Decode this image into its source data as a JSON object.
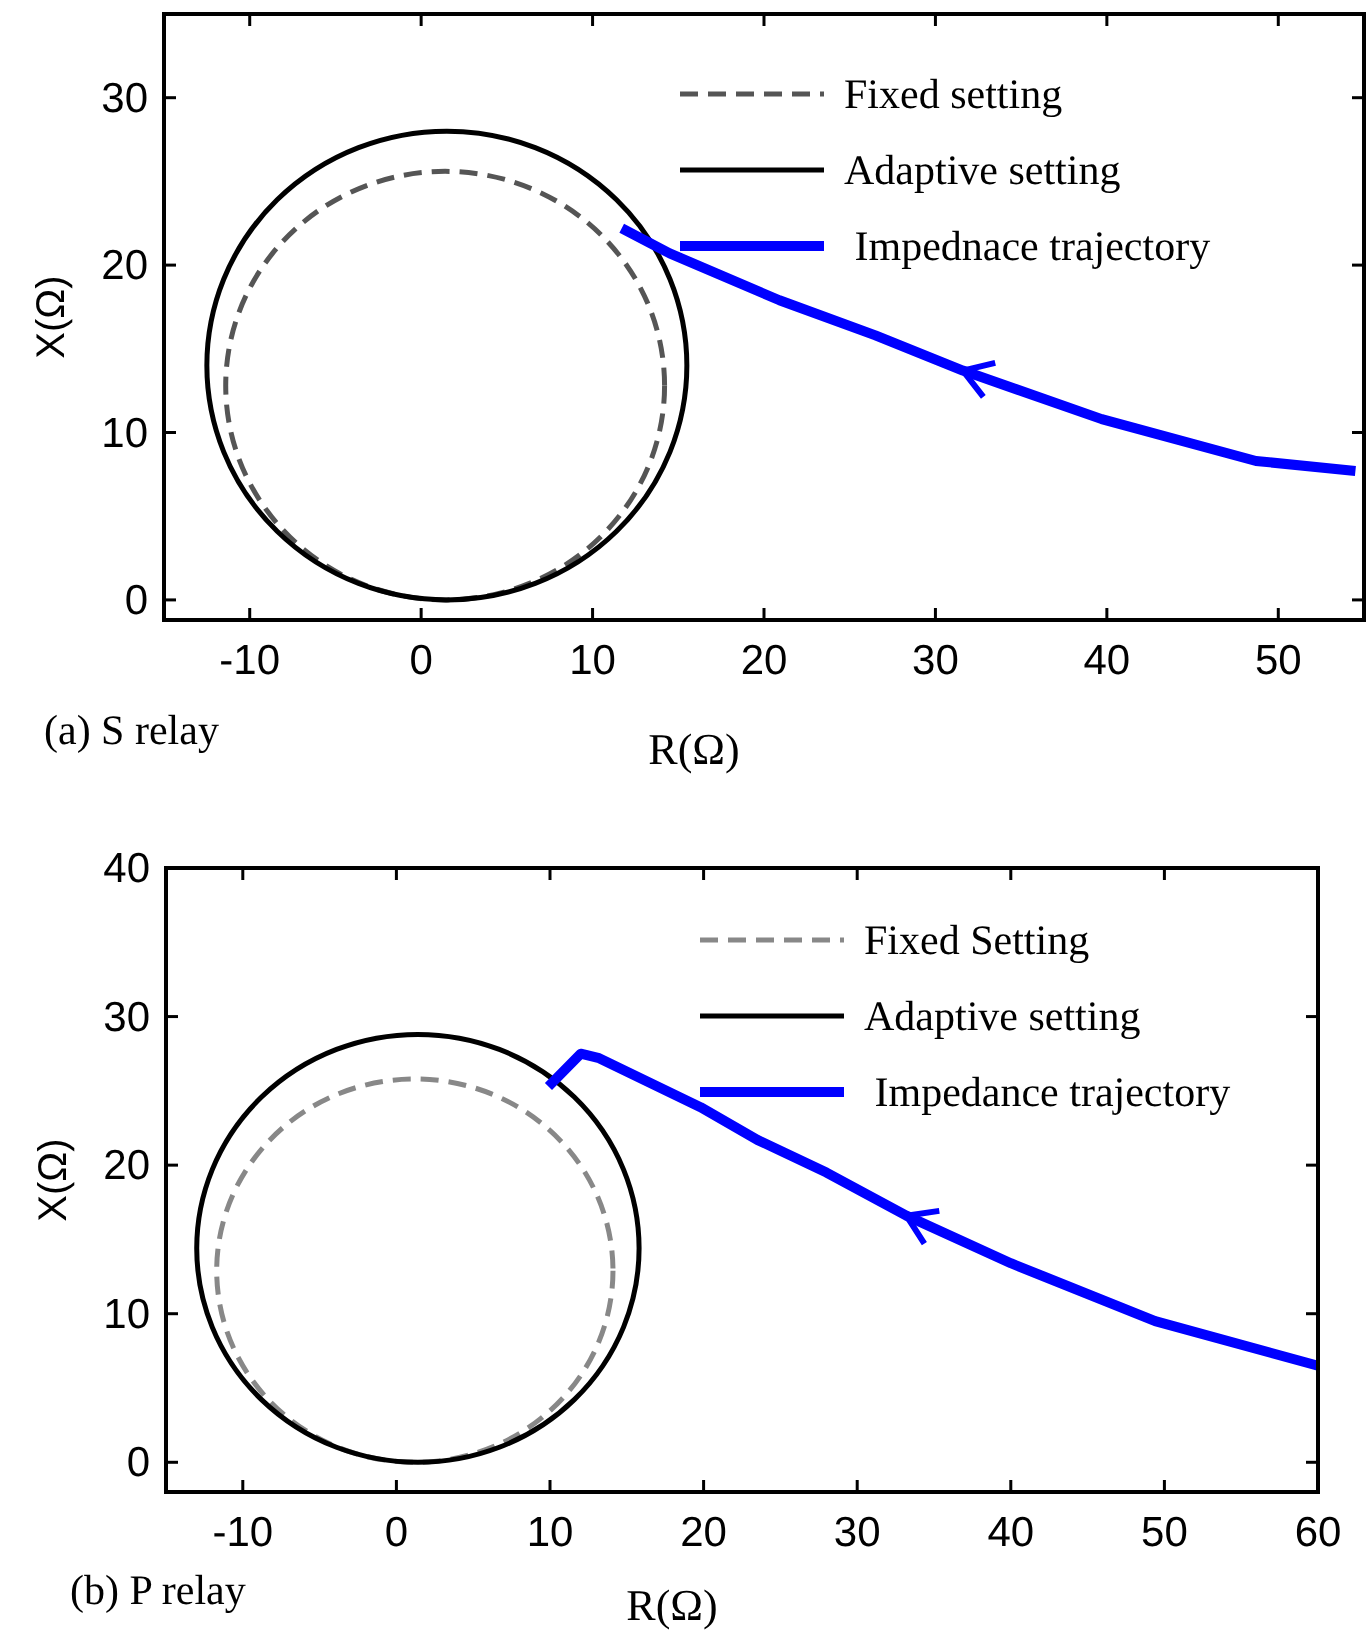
{
  "chart_data": [
    {
      "type": "line",
      "xlabel": "R(Ω)",
      "ylabel": "X(Ω)",
      "xlim": [
        -15,
        55
      ],
      "ylim": [
        -1.2,
        35
      ],
      "xticks": [
        -10,
        0,
        10,
        20,
        30,
        40,
        50
      ],
      "yticks": [
        0,
        10,
        20,
        30
      ],
      "legend": "top right",
      "grid": false,
      "annotations": [
        "(a) S relay"
      ],
      "series": [
        {
          "name": "Fixed setting",
          "color": "#555555",
          "line_style": "dashed"
        },
        {
          "name": "Adaptive setting",
          "color": "#000000",
          "line_style": "solid"
        },
        {
          "name": " Impednace trajectory",
          "color": "#0000ff",
          "line_style": "solid",
          "x": [
            11.7,
            14.5,
            20.9,
            26.5,
            31.6,
            39.7,
            48.7,
            54.5
          ],
          "values": [
            22.2,
            20.7,
            17.9,
            15.8,
            13.7,
            10.8,
            8.3,
            7.7
          ]
        }
      ]
    },
    {
      "type": "line",
      "xlabel": "R(Ω)",
      "ylabel": "X(Ω)",
      "xlim": [
        -15,
        60
      ],
      "ylim": [
        -2,
        40
      ],
      "xticks": [
        -10,
        0,
        10,
        20,
        30,
        40,
        50,
        60
      ],
      "yticks": [
        0,
        10,
        20,
        30,
        40
      ],
      "legend": "top right",
      "grid": false,
      "annotations": [
        "(b) P relay"
      ],
      "series": [
        {
          "name": "Fixed Setting",
          "color": "#888888",
          "line_style": "dashed"
        },
        {
          "name": "Adaptive setting",
          "color": "#000000",
          "line_style": "solid"
        },
        {
          "name": " Impedance trajectory",
          "color": "#0000ff",
          "line_style": "solid",
          "x": [
            9.9,
            12.0,
            13.2,
            19.8,
            23.5,
            28.0,
            33.2,
            40.0,
            49.4,
            60
          ],
          "values": [
            25.3,
            27.5,
            27.2,
            23.9,
            21.7,
            19.5,
            16.6,
            13.4,
            9.5,
            6.5
          ]
        }
      ]
    }
  ]
}
